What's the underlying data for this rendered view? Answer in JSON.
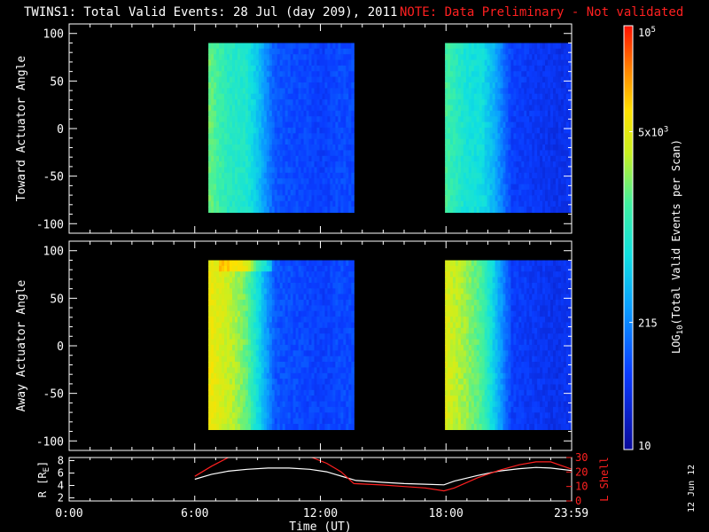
{
  "header": {
    "title": "TWINS1: Total Valid Events: 28 Jul (day 209), 2011",
    "note": "NOTE: Data Preliminary - Not validated",
    "note_color": "#ff2020"
  },
  "side_date": "12 Jun 12",
  "colors": {
    "background": "#000000",
    "axes": "#ffffff",
    "orbit_r": "#ffffff",
    "orbit_l": "#ff2020"
  },
  "chart_data": [
    {
      "type": "heatmap",
      "ylabel": "Toward Actuator Angle",
      "ylim": [
        -110,
        110
      ],
      "yticks": [
        -100,
        -50,
        0,
        50,
        100
      ],
      "x_hours": [
        0,
        24
      ],
      "data_blocks": [
        {
          "start_h": 6.65,
          "end_h": 13.6,
          "angle_range": [
            -88,
            90
          ]
        },
        {
          "start_h": 17.95,
          "end_h": 23.99,
          "angle_range": [
            -88,
            90
          ]
        }
      ],
      "profile_hours": [
        0.0,
        0.4,
        1.0,
        1.8,
        2.4,
        3.2,
        4.3,
        5.5,
        6.2
      ],
      "profile_levels": [
        0.62,
        0.58,
        0.52,
        0.5,
        0.4,
        0.22,
        0.2,
        0.18,
        0.2
      ],
      "grid": false
    },
    {
      "type": "heatmap",
      "ylabel": "Away Actuator Angle",
      "ylim": [
        -110,
        110
      ],
      "yticks": [
        -100,
        -50,
        0,
        50,
        100
      ],
      "x_hours": [
        0,
        24
      ],
      "data_blocks": [
        {
          "start_h": 6.65,
          "end_h": 13.6,
          "angle_range": [
            -88,
            90
          ]
        },
        {
          "start_h": 17.95,
          "end_h": 23.99,
          "angle_range": [
            -88,
            90
          ]
        }
      ],
      "profile_hours": [
        0.0,
        0.4,
        1.0,
        1.8,
        2.4,
        3.2,
        4.3,
        5.5,
        6.2
      ],
      "profile_levels": [
        0.78,
        0.74,
        0.7,
        0.62,
        0.45,
        0.22,
        0.2,
        0.18,
        0.2
      ],
      "grid": false
    },
    {
      "type": "line",
      "xlabel": "Time (UT)",
      "xticks": [
        "0:00",
        "6:00",
        "12:00",
        "18:00",
        "23:59"
      ],
      "xtick_hours": [
        0,
        6,
        12,
        18,
        23.98
      ],
      "x_hours": [
        0,
        24
      ],
      "left_axis": {
        "label": "R [R",
        "label_sub": "E",
        "label_end": "]",
        "ylim": [
          1.5,
          8.5
        ],
        "yticks": [
          2,
          4,
          6,
          8
        ]
      },
      "right_axis": {
        "label": "L Shell",
        "ylim": [
          0,
          30
        ],
        "yticks": [
          0,
          10,
          20,
          30
        ]
      },
      "series": [
        {
          "axis": "left",
          "color": "#ffffff",
          "x": [
            6.0,
            6.8,
            7.6,
            8.5,
            9.5,
            10.5,
            11.5,
            12.3,
            13.0,
            13.7,
            15.0,
            16.0,
            17.0,
            17.9,
            18.4,
            19.5,
            20.5,
            21.5,
            22.3,
            23.0,
            23.99
          ],
          "y": [
            5.0,
            5.8,
            6.3,
            6.6,
            6.8,
            6.8,
            6.6,
            6.2,
            5.5,
            4.8,
            4.5,
            4.3,
            4.2,
            4.1,
            4.7,
            5.6,
            6.3,
            6.7,
            6.9,
            6.8,
            6.4
          ]
        },
        {
          "axis": "right",
          "color": "#ff2020",
          "x": [
            6.0,
            6.8,
            7.6,
            8.0,
            11.0,
            11.6,
            12.3,
            13.0,
            13.6,
            15.0,
            16.0,
            17.0,
            17.9,
            18.4,
            19.5,
            20.5,
            21.5,
            22.3,
            23.0,
            23.99
          ],
          "y": [
            17.0,
            24.0,
            30.0,
            31.0,
            31.0,
            30.0,
            26.0,
            20.0,
            12.0,
            11.0,
            10.0,
            9.0,
            7.0,
            9.0,
            16.0,
            21.0,
            25.0,
            27.0,
            27.0,
            22.0
          ]
        }
      ]
    }
  ],
  "colorbar": {
    "label_main": "LOG",
    "label_sub": "10",
    "label_rest": "(Total Valid Events per Scan)",
    "ticks": [
      {
        "text": "10",
        "level": 0
      },
      {
        "text": "215",
        "level": 0.3
      },
      {
        "text": "5x10",
        "sup": "3",
        "level": 0.75
      },
      {
        "text": "10",
        "sup": "5",
        "level": 1
      }
    ]
  }
}
